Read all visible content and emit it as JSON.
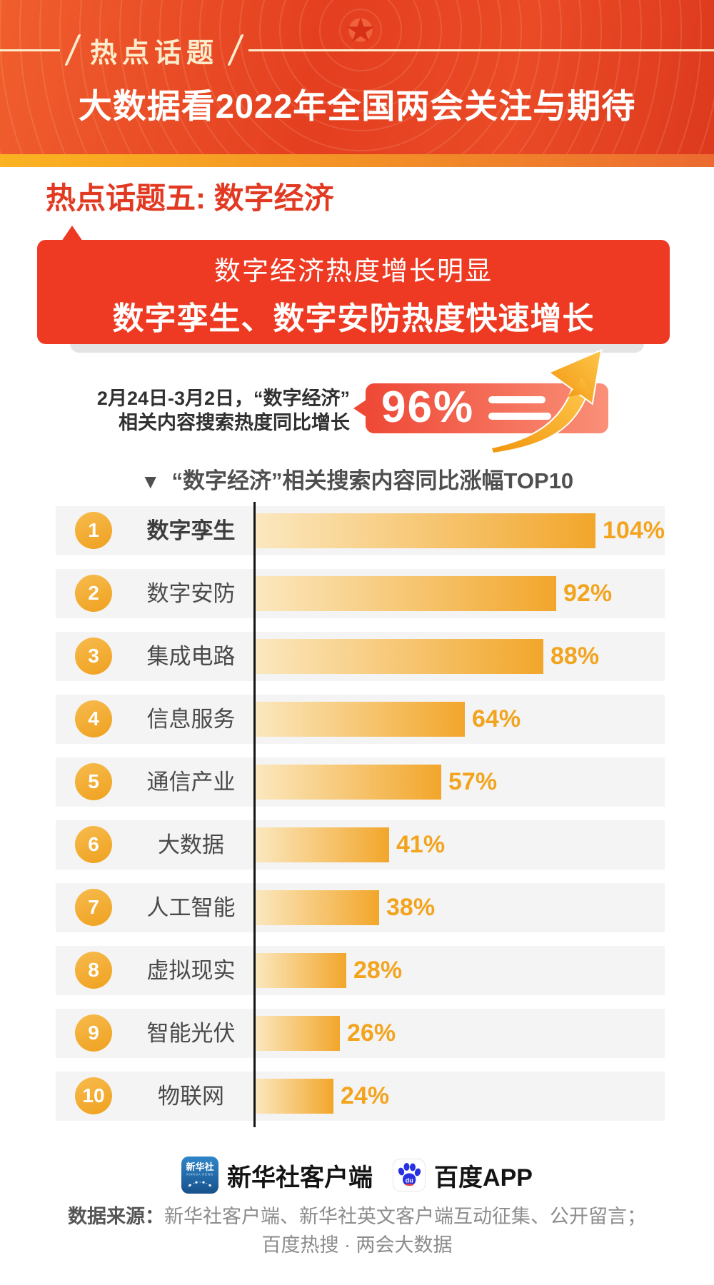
{
  "header": {
    "badge": "热点话题",
    "title": "大数据看2022年全国两会关注与期待"
  },
  "section": {
    "title": "热点话题五: 数字经济"
  },
  "callout": {
    "line1": "数字经济热度增长明显",
    "line2": "数字孪生、数字安防热度快速增长"
  },
  "stat": {
    "desc_line1": "2月24日-3月2日，“数字经济”",
    "desc_line2": "相关内容搜索热度同比增长",
    "value": "96%"
  },
  "chart": {
    "marker": "▼",
    "title": "“数字经济”相关搜索内容同比涨幅TOP10"
  },
  "chart_data": {
    "type": "bar",
    "orientation": "horizontal",
    "title": "“数字经济”相关搜索内容同比涨幅TOP10",
    "categories": [
      "数字孪生",
      "数字安防",
      "集成电路",
      "信息服务",
      "通信产业",
      "大数据",
      "人工智能",
      "虚拟现实",
      "智能光伏",
      "物联网"
    ],
    "values": [
      104,
      92,
      88,
      64,
      57,
      41,
      38,
      28,
      26,
      24
    ],
    "unit": "%",
    "xlim": [
      0,
      104
    ],
    "grid": false,
    "legend": false,
    "bar_gradient": [
      "#fbe8bf",
      "#f2a62b"
    ]
  },
  "footer": {
    "logo1_label": "新华社客户端",
    "logo1_icon_text": "新华社",
    "logo1_icon_sub": "XINHUA NEWS",
    "logo2_label": "百度APP",
    "logo2_icon_text": "du",
    "source_label": "数据来源：",
    "source_line1": "新华社客户端、新华社英文客户端互动征集、公开留言；",
    "source_line2": "百度热搜 · 两会大数据"
  },
  "colors": {
    "header_red": "#e84526",
    "gold_strip": "#f5a623",
    "callout_red": "#ee3a23",
    "bar_orange": "#f2a62b",
    "percent_orange": "#f3a41f",
    "xinhua_blue": "#2b77bb",
    "baidu_blue": "#2932e1"
  }
}
